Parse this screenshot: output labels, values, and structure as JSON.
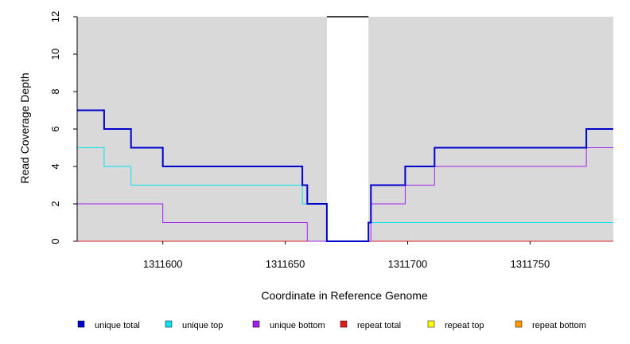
{
  "chart_data": {
    "type": "line",
    "xlabel": "Coordinate in Reference Genome",
    "ylabel": "Read Coverage Depth",
    "xlim": [
      1311565,
      1311784
    ],
    "ylim": [
      0,
      12
    ],
    "x_ticks": [
      1311600,
      1311650,
      1311700,
      1311750
    ],
    "y_ticks": [
      0,
      2,
      4,
      6,
      8,
      10,
      12
    ],
    "background": "#d9d9d9",
    "gap_region": {
      "x": [
        1311667,
        1311684
      ],
      "color": "#ffffff"
    },
    "grid": false,
    "legend_position": "bottom",
    "series": [
      {
        "name": "unique total",
        "color": "#0000cd",
        "line_width": 2,
        "x": [
          1311565,
          1311576,
          1311587,
          1311600,
          1311657,
          1311659,
          1311667,
          1311684,
          1311685,
          1311699,
          1311711,
          1311773,
          1311784
        ],
        "y": [
          7,
          6,
          5,
          4,
          3,
          2,
          0,
          1,
          3,
          4,
          5,
          6,
          6
        ]
      },
      {
        "name": "unique top",
        "color": "#00e5ee",
        "line_width": 1,
        "x": [
          1311565,
          1311576,
          1311587,
          1311657,
          1311659,
          1311667,
          1311684,
          1311685,
          1311784
        ],
        "y": [
          5,
          4,
          3,
          2,
          2,
          0,
          1,
          1,
          1
        ]
      },
      {
        "name": "unique bottom",
        "color": "#a020f0",
        "line_width": 1,
        "x": [
          1311565,
          1311600,
          1311659,
          1311684,
          1311685,
          1311699,
          1311711,
          1311773,
          1311784
        ],
        "y": [
          2,
          1,
          0,
          0,
          2,
          3,
          4,
          5,
          5
        ]
      },
      {
        "name": "repeat total",
        "color": "#e31a1c",
        "line_width": 1,
        "x": [
          1311565,
          1311784
        ],
        "y": [
          0,
          0
        ]
      },
      {
        "name": "repeat top",
        "color": "#ffff00",
        "line_width": 1,
        "x": [
          1311565,
          1311784
        ],
        "y": [
          0,
          0
        ]
      },
      {
        "name": "repeat bottom",
        "color": "#ff9900",
        "line_width": 1,
        "x": [
          1311565,
          1311784
        ],
        "y": [
          0,
          0
        ]
      }
    ]
  }
}
